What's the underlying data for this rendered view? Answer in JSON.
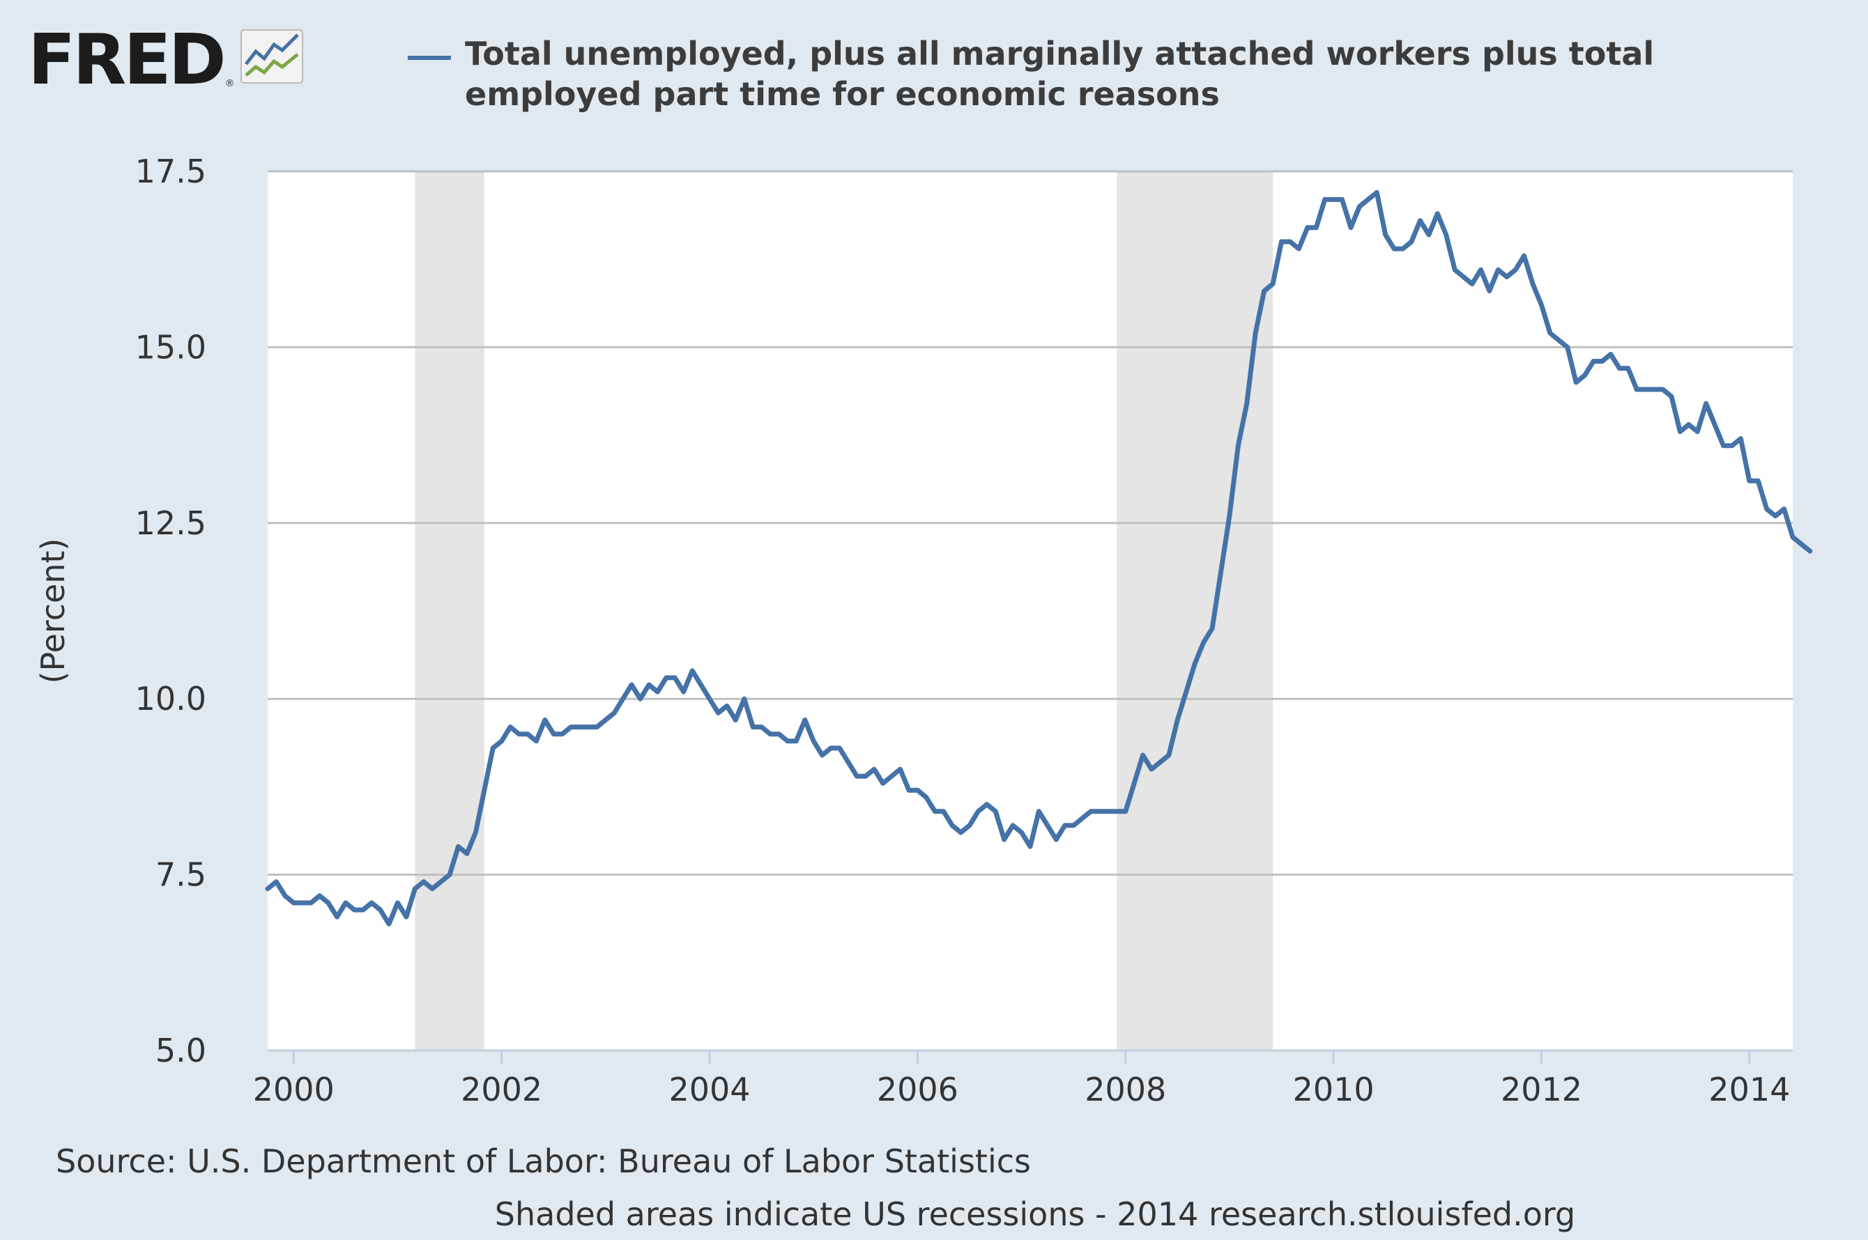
{
  "logo": {
    "text": "FRED",
    "registered": "®",
    "icon": "trend-chart-icon"
  },
  "footer": {
    "source": "Source: U.S. Department of Labor: Bureau of Labor Statistics",
    "note": "Shaded areas indicate US recessions - 2014 research.stlouisfed.org"
  },
  "colors": {
    "line": "#4572a7",
    "background": "#e1e9f0",
    "plot": "#ffffff",
    "recession": "#e5e5e5",
    "grid": "#c0c0c0"
  },
  "chart_data": {
    "type": "line",
    "legend_placement": "top",
    "grid": true,
    "xlabel": "",
    "ylabel": "(Percent)",
    "xlim": [
      "1999-10",
      "2014-06"
    ],
    "ylim": [
      5.0,
      17.5
    ],
    "yticks": [
      "5.0",
      "7.5",
      "10.0",
      "12.5",
      "15.0",
      "17.5"
    ],
    "xticks": [
      "2000",
      "2002",
      "2004",
      "2006",
      "2008",
      "2010",
      "2012",
      "2014"
    ],
    "recessions": [
      [
        "2001-03",
        "2001-11"
      ],
      [
        "2007-12",
        "2009-06"
      ]
    ],
    "series": [
      {
        "name": "Total unemployed, plus all marginally attached workers plus total employed part time for economic reasons",
        "start": "1999-10",
        "frequency": "monthly",
        "values": [
          7.3,
          7.4,
          7.2,
          7.1,
          7.1,
          7.1,
          7.2,
          7.1,
          6.9,
          7.1,
          7.0,
          7.0,
          7.1,
          7.0,
          6.8,
          7.1,
          6.9,
          7.3,
          7.4,
          7.3,
          7.4,
          7.5,
          7.9,
          7.8,
          8.1,
          8.7,
          9.3,
          9.4,
          9.6,
          9.5,
          9.5,
          9.4,
          9.7,
          9.5,
          9.5,
          9.6,
          9.6,
          9.6,
          9.6,
          9.7,
          9.8,
          10.0,
          10.2,
          10.0,
          10.2,
          10.1,
          10.3,
          10.3,
          10.1,
          10.4,
          10.2,
          10.0,
          9.8,
          9.9,
          9.7,
          10.0,
          9.6,
          9.6,
          9.5,
          9.5,
          9.4,
          9.4,
          9.7,
          9.4,
          9.2,
          9.3,
          9.3,
          9.1,
          8.9,
          8.9,
          9.0,
          8.8,
          8.9,
          9.0,
          8.7,
          8.7,
          8.6,
          8.4,
          8.4,
          8.2,
          8.1,
          8.2,
          8.4,
          8.5,
          8.4,
          8.0,
          8.2,
          8.1,
          7.9,
          8.4,
          8.2,
          8.0,
          8.2,
          8.2,
          8.3,
          8.4,
          8.4,
          8.4,
          8.4,
          8.4,
          8.8,
          9.2,
          9.0,
          9.1,
          9.2,
          9.7,
          10.1,
          10.5,
          10.8,
          11.0,
          11.8,
          12.6,
          13.6,
          14.2,
          15.2,
          15.8,
          15.9,
          16.5,
          16.5,
          16.4,
          16.7,
          16.7,
          17.1,
          17.1,
          17.1,
          16.7,
          17.0,
          17.1,
          17.2,
          16.6,
          16.4,
          16.4,
          16.5,
          16.8,
          16.6,
          16.9,
          16.6,
          16.1,
          16.0,
          15.9,
          16.1,
          15.8,
          16.1,
          16.0,
          16.1,
          16.3,
          15.9,
          15.6,
          15.2,
          15.1,
          15.0,
          14.5,
          14.6,
          14.8,
          14.8,
          14.9,
          14.7,
          14.7,
          14.4,
          14.4,
          14.4,
          14.4,
          14.3,
          13.8,
          13.9,
          13.8,
          14.2,
          13.9,
          13.6,
          13.6,
          13.7,
          13.1,
          13.1,
          12.7,
          12.6,
          12.7,
          12.3,
          12.2,
          12.1
        ]
      }
    ]
  }
}
